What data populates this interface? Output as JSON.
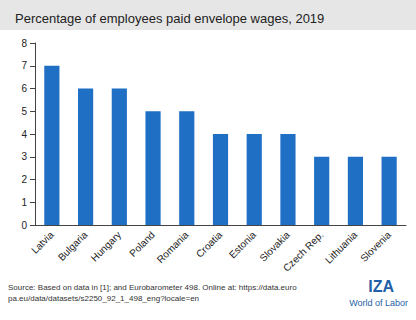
{
  "chart_data": {
    "type": "bar",
    "title": "Percentage of employees paid envelope wages, 2019",
    "categories": [
      "Latvia",
      "Bulgaria",
      "Hungary",
      "Poland",
      "Romania",
      "Croatia",
      "Estonia",
      "Slovakia",
      "Czech Rep.",
      "Lithuania",
      "Slovenia"
    ],
    "values": [
      7,
      6,
      6,
      5,
      5,
      4,
      4,
      4,
      3,
      3,
      3
    ],
    "color": "#1f6fc5",
    "ylim": [
      0,
      8
    ],
    "yticks": [
      0,
      1,
      2,
      3,
      4,
      5,
      6,
      7,
      8
    ],
    "grid": false,
    "annotations": [
      "Source: Based on data in [1]; and Eurobarometer 498. Online at: https://data.europa.eu/data/datasets/s2250_92_1_498_eng?locale=en",
      "IZA",
      "World of Labor"
    ]
  }
}
